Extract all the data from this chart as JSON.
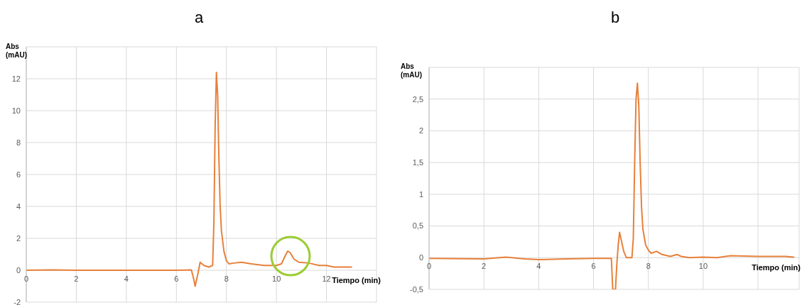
{
  "chart_data": [
    {
      "type": "line",
      "title": "a",
      "xlabel": "Tiempo (min)",
      "ylabel": "Abs\n(mAU)",
      "xlim": [
        0,
        14
      ],
      "ylim": [
        -2,
        14
      ],
      "xticks": [
        0,
        2,
        4,
        6,
        8,
        10,
        12,
        {
          "value": 14,
          "label": null
        }
      ],
      "yticks": [
        -2,
        0,
        2,
        4,
        6,
        8,
        10,
        12,
        {
          "value": 14,
          "label": null
        }
      ],
      "grid": true,
      "marker": "none",
      "line_style": "solid",
      "series": [
        {
          "color": "#e8803a",
          "x": [
            0,
            1,
            2,
            3,
            4,
            5,
            6,
            6.6,
            6.7,
            6.75,
            6.85,
            6.95,
            7.1,
            7.3,
            7.45,
            7.5,
            7.55,
            7.6,
            7.65,
            7.7,
            7.75,
            7.8,
            7.9,
            8.0,
            8.1,
            8.3,
            8.6,
            9,
            9.5,
            10,
            10.2,
            10.35,
            10.45,
            10.55,
            10.7,
            10.9,
            11.3,
            11.7,
            12,
            12.3,
            13
          ],
          "values": [
            0,
            0.02,
            0,
            0,
            0,
            0,
            0,
            0.02,
            -0.6,
            -1,
            -0.3,
            0.5,
            0.3,
            0.2,
            0.3,
            3,
            9,
            12.4,
            11,
            7,
            4,
            2.5,
            1.2,
            0.6,
            0.4,
            0.45,
            0.5,
            0.4,
            0.3,
            0.3,
            0.4,
            0.9,
            1.2,
            1.1,
            0.7,
            0.5,
            0.45,
            0.3,
            0.3,
            0.2,
            0.2
          ]
        }
      ]
    },
    {
      "type": "line",
      "title": "b",
      "xlabel": "Tiempo (min)",
      "ylabel": "Abs\n(mAU)",
      "xlim": [
        0,
        13.5
      ],
      "ylim": [
        -0.5,
        3
      ],
      "xticks": [
        0,
        2,
        4,
        6,
        8,
        10,
        {
          "value": 12,
          "label": null
        }
      ],
      "yticks": [
        {
          "value": -0.5,
          "label": "-0,5"
        },
        0,
        {
          "value": 0.5,
          "label": "0,5"
        },
        1,
        {
          "value": 1.5,
          "label": "1,5"
        },
        2,
        {
          "value": 2.5,
          "label": "2,5"
        },
        {
          "value": 3,
          "label": null
        }
      ],
      "grid": true,
      "marker": "none",
      "line_style": "solid",
      "series": [
        {
          "color": "#e8803a",
          "x": [
            0,
            2,
            2.8,
            3.5,
            4,
            5,
            6,
            6.65,
            6.7,
            6.8,
            6.85,
            6.9,
            6.95,
            7.0,
            7.1,
            7.2,
            7.4,
            7.45,
            7.5,
            7.55,
            7.6,
            7.65,
            7.7,
            7.75,
            7.8,
            7.9,
            8.0,
            8.1,
            8.3,
            8.5,
            8.8,
            9.05,
            9.2,
            9.5,
            10,
            10.5,
            11,
            12,
            13,
            13.3
          ],
          "values": [
            -0.01,
            -0.02,
            0.01,
            -0.02,
            -0.03,
            -0.02,
            -0.01,
            -0.01,
            -0.5,
            -0.5,
            -0.1,
            0.2,
            0.4,
            0.3,
            0.1,
            0,
            0,
            0.3,
            1.5,
            2.5,
            2.75,
            2.4,
            1.5,
            0.8,
            0.45,
            0.2,
            0.12,
            0.07,
            0.1,
            0.05,
            0.02,
            0.05,
            0.02,
            0,
            0.01,
            0,
            0.03,
            0.02,
            0.02,
            0.01
          ]
        }
      ]
    }
  ]
}
